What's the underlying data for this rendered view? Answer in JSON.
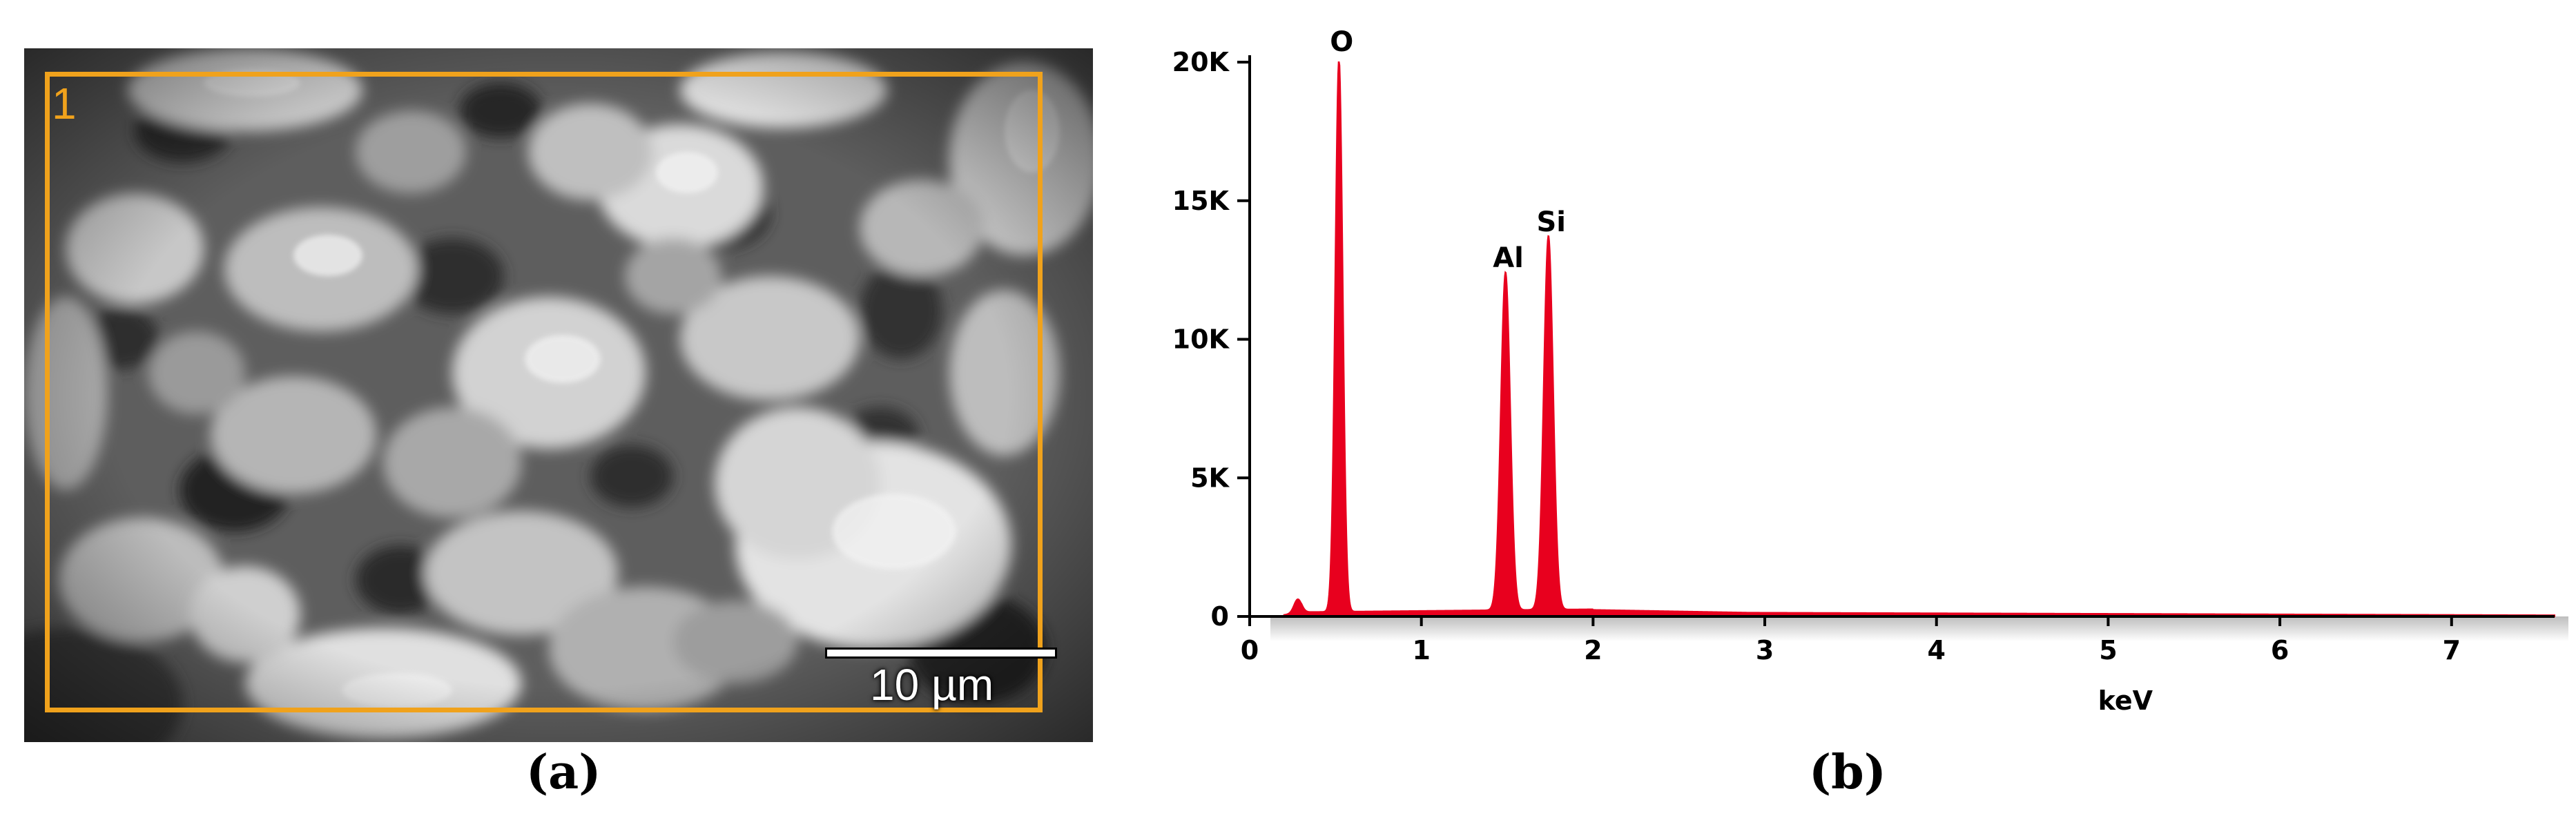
{
  "panel_a": {
    "caption": "(a)",
    "roi_label": "1",
    "scale_bar_label": "10 µm"
  },
  "panel_b": {
    "caption": "(b)"
  },
  "colors": {
    "spectrum": "#e8001e",
    "roi_box": "#f0a21c"
  },
  "chart_data": {
    "type": "area",
    "title": "",
    "xlabel": "keV",
    "ylabel": "",
    "xlim": [
      0,
      7.6
    ],
    "ylim": [
      0,
      20000
    ],
    "x_ticks": [
      0,
      1,
      2,
      3,
      4,
      5,
      6,
      7
    ],
    "x_tick_labels": [
      "0",
      "1",
      "2",
      "3",
      "4",
      "5",
      "6",
      "7"
    ],
    "y_ticks": [
      0,
      5000,
      10000,
      15000,
      20000
    ],
    "y_tick_labels": [
      "0",
      "5K",
      "10K",
      "15K",
      "20K"
    ],
    "grid": false,
    "series": [
      {
        "peaks": [
          {
            "element": "O",
            "energy_kev": 0.52,
            "counts": 20000
          },
          {
            "element": "Al",
            "energy_kev": 1.49,
            "counts": 12200
          },
          {
            "element": "Si",
            "energy_kev": 1.74,
            "counts": 13500
          }
        ],
        "minor_peaks": [
          {
            "energy_kev": 0.28,
            "counts": 500
          }
        ],
        "background_range_kev": [
          0.2,
          7.6
        ]
      }
    ]
  }
}
